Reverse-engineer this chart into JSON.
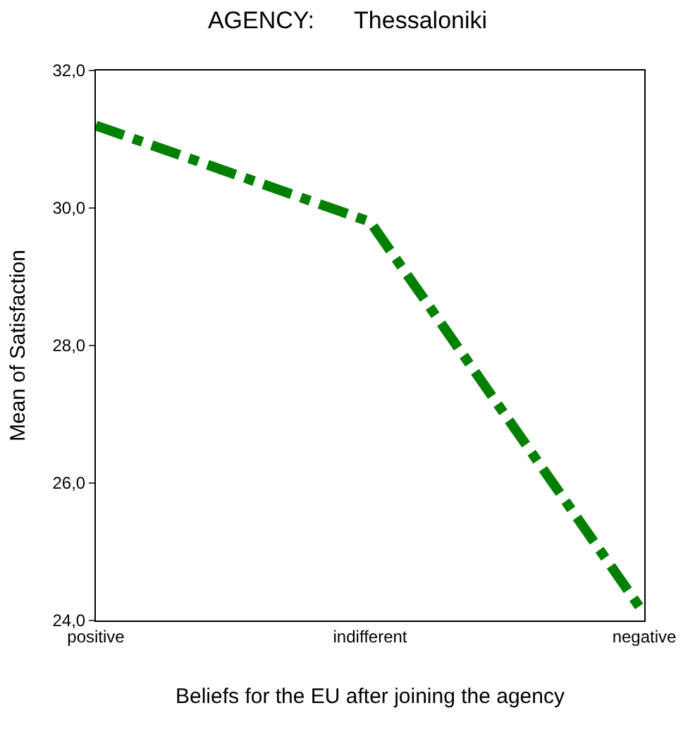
{
  "chart_data": {
    "type": "line",
    "title": "AGENCY:      Thessaloniki",
    "xlabel": "Beliefs for the EU after joining the agency",
    "ylabel": "Mean of Satisfaction",
    "categories": [
      "positive",
      "indifferent",
      "negative"
    ],
    "series": [
      {
        "color": "#008000",
        "values": [
          31.2,
          29.8,
          24.1
        ]
      }
    ],
    "ylim": [
      24,
      32
    ],
    "yticks": [
      {
        "value": 24,
        "label": "24,0"
      },
      {
        "value": 26,
        "label": "26,0"
      },
      {
        "value": 28,
        "label": "28,0"
      },
      {
        "value": 30,
        "label": "30,0"
      },
      {
        "value": 32,
        "label": "32,0"
      }
    ],
    "line_style": "dashdot",
    "grid": false,
    "legend": false,
    "marker": "none"
  }
}
